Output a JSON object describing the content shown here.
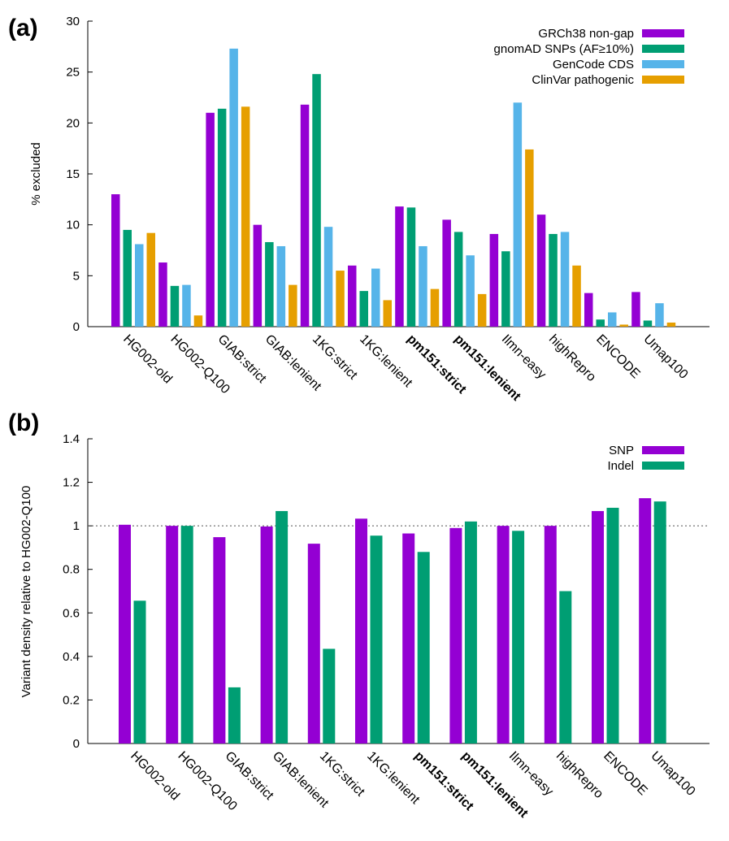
{
  "chart_data": [
    {
      "panel": "(a)",
      "type": "bar",
      "ylabel": "% excluded",
      "ylim": [
        0,
        30
      ],
      "yticks": [
        0,
        5,
        10,
        15,
        20,
        25,
        30
      ],
      "categories": [
        "HG002-old",
        "HG002-Q100",
        "GIAB:strict",
        "GIAB:lenient",
        "1KG:strict",
        "1KG:lenient",
        "pm151:strict",
        "pm151:lenient",
        "Ilmn-easy",
        "highRepro",
        "ENCODE",
        "Umap100"
      ],
      "bold_categories": [
        "pm151:strict",
        "pm151:lenient"
      ],
      "legend_position": "top-right",
      "series": [
        {
          "name": "GRCh38 non-gap",
          "color": "#9400d3",
          "values": [
            13.0,
            6.3,
            21.0,
            10.0,
            21.8,
            6.0,
            11.8,
            10.5,
            9.1,
            11.0,
            3.3,
            3.4
          ]
        },
        {
          "name": "gnomAD SNPs (AF≥10%)",
          "color": "#009e73",
          "values": [
            9.5,
            4.0,
            21.4,
            8.3,
            24.8,
            3.5,
            11.7,
            9.3,
            7.4,
            9.1,
            0.7,
            0.6
          ]
        },
        {
          "name": "GenCode CDS",
          "color": "#56b4e9",
          "values": [
            8.1,
            4.1,
            27.3,
            7.9,
            9.8,
            5.7,
            7.9,
            7.0,
            22.0,
            9.3,
            1.4,
            2.3
          ]
        },
        {
          "name": "ClinVar pathogenic",
          "color": "#e69f00",
          "values": [
            9.2,
            1.1,
            21.6,
            4.1,
            5.5,
            2.6,
            3.7,
            3.2,
            17.4,
            6.0,
            0.2,
            0.4
          ]
        }
      ]
    },
    {
      "panel": "(b)",
      "type": "bar",
      "ylabel": "Variant density relative to HG002-Q100",
      "ylim": [
        0,
        1.4
      ],
      "yticks": [
        0,
        0.2,
        0.4,
        0.6,
        0.8,
        1,
        1.2,
        1.4
      ],
      "reference_line": 1,
      "categories": [
        "HG002-old",
        "HG002-Q100",
        "GIAB:strict",
        "GIAB:lenient",
        "1KG:strict",
        "1KG:lenient",
        "pm151:strict",
        "pm151:lenient",
        "Ilmn-easy",
        "highRepro",
        "ENCODE",
        "Umap100"
      ],
      "bold_categories": [
        "pm151:strict",
        "pm151:lenient"
      ],
      "legend_position": "top-right",
      "series": [
        {
          "name": "SNP",
          "color": "#9400d3",
          "values": [
            1.005,
            1.0,
            0.948,
            0.997,
            0.918,
            1.033,
            0.965,
            0.99,
            1.0,
            1.0,
            1.068,
            1.127
          ]
        },
        {
          "name": "Indel",
          "color": "#009e73",
          "values": [
            0.656,
            1.0,
            0.258,
            1.068,
            0.435,
            0.955,
            0.88,
            1.02,
            0.977,
            0.7,
            1.083,
            1.112
          ]
        }
      ]
    }
  ]
}
